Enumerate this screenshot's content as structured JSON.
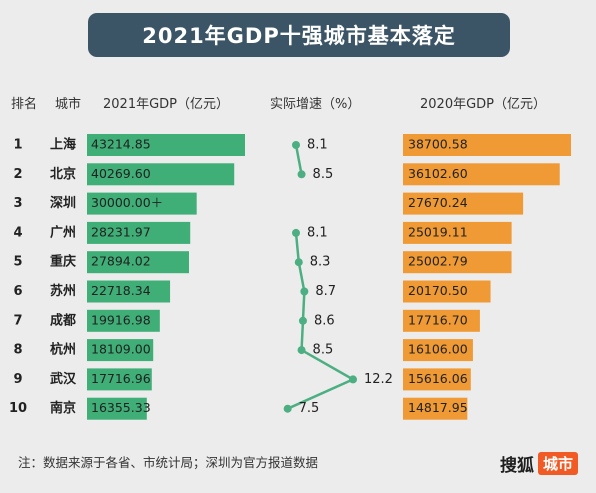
{
  "title": "2021年GDP十强城市基本落定",
  "headers": {
    "rank": "排名",
    "city": "城市",
    "gdp2021": "2021年GDP（亿元）",
    "growth": "实际增速（%）",
    "gdp2020": "2020年GDP（亿元）"
  },
  "note": "注：数据来源于各省、市统计局；深圳为官方报道数据",
  "logo": {
    "brand": "搜狐",
    "section": "城市"
  },
  "colors": {
    "bar2021": "#3fae77",
    "bar2020": "#ef9a34",
    "line": "#4caf82",
    "title_bg": "#3b5566"
  },
  "chart_data": [
    {
      "type": "bar",
      "series": [
        {
          "name": "2021年GDP（亿元）",
          "color": "#3fae77"
        }
      ],
      "categories": [
        "上海",
        "北京",
        "深圳",
        "广州",
        "重庆",
        "苏州",
        "成都",
        "杭州",
        "武汉",
        "南京"
      ],
      "ranks": [
        "1",
        "2",
        "3",
        "4",
        "5",
        "6",
        "7",
        "8",
        "9",
        "10"
      ],
      "values": [
        43214.85,
        40269.6,
        30000.0,
        28231.97,
        27894.02,
        22718.34,
        19916.98,
        18109.0,
        17716.96,
        16355.33
      ],
      "labels": [
        "43214.85",
        "40269.60",
        "30000.00＋",
        "28231.97",
        "27894.02",
        "22718.34",
        "19916.98",
        "18109.00",
        "17716.96",
        "16355.33"
      ]
    },
    {
      "type": "line",
      "series": [
        {
          "name": "实际增速（%）",
          "color": "#4caf82"
        }
      ],
      "categories": [
        "上海",
        "北京",
        "深圳",
        "广州",
        "重庆",
        "苏州",
        "成都",
        "杭州",
        "武汉",
        "南京"
      ],
      "values": [
        8.1,
        8.5,
        null,
        8.1,
        8.3,
        8.7,
        8.6,
        8.5,
        12.2,
        7.5
      ],
      "labels": [
        "8.1",
        "8.5",
        "",
        "8.1",
        "8.3",
        "8.7",
        "8.6",
        "8.5",
        "12.2",
        "7.5"
      ]
    },
    {
      "type": "bar",
      "series": [
        {
          "name": "2020年GDP（亿元）",
          "color": "#ef9a34"
        }
      ],
      "categories": [
        "上海",
        "北京",
        "深圳",
        "广州",
        "重庆",
        "苏州",
        "成都",
        "杭州",
        "武汉",
        "南京"
      ],
      "values": [
        38700.58,
        36102.6,
        27670.24,
        25019.11,
        25002.79,
        20170.5,
        17716.7,
        16106.0,
        15616.06,
        14817.95
      ],
      "labels": [
        "38700.58",
        "36102.60",
        "27670.24",
        "25019.11",
        "25002.79",
        "20170.50",
        "17716.70",
        "16106.00",
        "15616.06",
        "14817.95"
      ]
    }
  ]
}
